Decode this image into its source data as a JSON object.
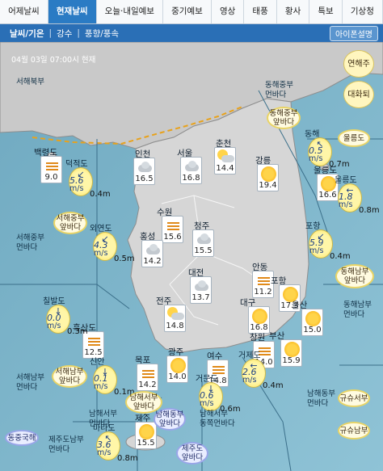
{
  "tabs": [
    "어제날씨",
    "현재날씨",
    "오늘·내일예보",
    "중기예보",
    "영상",
    "태풍",
    "황사",
    "특보",
    "기상청"
  ],
  "active_tab": "현재날씨",
  "subnav": {
    "items": [
      "날씨/기온",
      "강수",
      "풍향/풍속"
    ],
    "separator": "|",
    "selected": "날씨/기온",
    "phone_button": "아이폰설명"
  },
  "map": {
    "timestamp": "04월 03일 07:00시 현재",
    "controls": {
      "zoom_label": "연해주",
      "strait_label": "대화퇴"
    },
    "seas": [
      {
        "text": "서해북부"
      },
      {
        "text": "동해중부\n먼바다"
      },
      {
        "text": "서해중부\n먼바다"
      },
      {
        "text": "동해남부\n먼바다"
      },
      {
        "text": "서해남부\n먼바다"
      },
      {
        "text": "남해동부\n먼바다"
      },
      {
        "text": "남해서부\n먼바다"
      },
      {
        "text": "남해서부\n동쪽먼바다"
      },
      {
        "text": "제주도남부\n먼바다"
      }
    ],
    "zones": [
      {
        "text": "동해중부\n앞바다",
        "style": "yellow"
      },
      {
        "text": "서해중부\n앞바다",
        "style": "yellow"
      },
      {
        "text": "동해남부\n앞바다",
        "style": "yellow"
      },
      {
        "text": "서해남부\n앞바다",
        "style": "yellow"
      },
      {
        "text": "남해서부\n앞바다",
        "style": "yellow"
      },
      {
        "text": "남해동부\n앞바다",
        "style": "blue"
      },
      {
        "text": "제주도\n앞바다",
        "style": "blue"
      },
      {
        "text": "울릉도",
        "style": "yellow"
      },
      {
        "text": "동중국해",
        "style": "blue"
      },
      {
        "text": "규슈서부",
        "style": "yellow"
      },
      {
        "text": "규슈남부",
        "style": "yellow"
      }
    ],
    "cities": [
      {
        "name": "백령도",
        "icon": "bars",
        "temp": "9.0"
      },
      {
        "name": "인천",
        "icon": "cloud",
        "temp": "16.5"
      },
      {
        "name": "서울",
        "icon": "cloud",
        "temp": "16.8"
      },
      {
        "name": "춘천",
        "icon": "pcloud",
        "temp": "14.4"
      },
      {
        "name": "강릉",
        "icon": "sun",
        "temp": "19.4"
      },
      {
        "name": "수원",
        "icon": "bars",
        "temp": "15.6"
      },
      {
        "name": "청주",
        "icon": "cloud",
        "temp": "15.5"
      },
      {
        "name": "홍성",
        "icon": "cloud",
        "temp": "14.2"
      },
      {
        "name": "안동",
        "icon": "bars",
        "temp": "11.2"
      },
      {
        "name": "울릉도",
        "icon": "sun",
        "temp": "16.6"
      },
      {
        "name": "대전",
        "icon": "cloud",
        "temp": "13.7"
      },
      {
        "name": "포항",
        "icon": "sun",
        "temp": "17.3"
      },
      {
        "name": "전주",
        "icon": "pcloud",
        "temp": "14.8"
      },
      {
        "name": "대구",
        "icon": "sun",
        "temp": "16.8"
      },
      {
        "name": "울산",
        "icon": "sun",
        "temp": "15.0"
      },
      {
        "name": "흑산도",
        "icon": "bars",
        "temp": "12.5"
      },
      {
        "name": "창원",
        "icon": "bars",
        "temp": "14.0"
      },
      {
        "name": "부산",
        "icon": "sun",
        "temp": "15.9"
      },
      {
        "name": "광주",
        "icon": "sun",
        "temp": "14.0"
      },
      {
        "name": "여수",
        "icon": "bars",
        "temp": "14.8"
      },
      {
        "name": "목포",
        "icon": "bars",
        "temp": "14.2"
      },
      {
        "name": "제주",
        "icon": "sun",
        "temp": "15.5"
      }
    ],
    "buoys": [
      {
        "name": "덕적도",
        "dir": "↙",
        "speed": "5.6",
        "unit": "m/s",
        "height": "0.4m"
      },
      {
        "name": "동해",
        "dir": "↖",
        "speed": "0.5",
        "unit": "m/s",
        "height": "0.7m"
      },
      {
        "name": "울릉도",
        "dir": "←",
        "speed": "1.8",
        "unit": "m/s",
        "height": "0.8m"
      },
      {
        "name": "외연도",
        "dir": "↙",
        "speed": "4.3",
        "unit": "m/s",
        "height": "0.5m"
      },
      {
        "name": "포항",
        "dir": "↙",
        "speed": "5.9",
        "unit": "m/s",
        "height": "0.4m"
      },
      {
        "name": "칠발도",
        "dir": "↓",
        "speed": "0.0",
        "unit": "m/s",
        "height": "0.3m"
      },
      {
        "name": "신안",
        "dir": "↓",
        "speed": "0.1",
        "unit": "m/s",
        "height": "0.1m"
      },
      {
        "name": "거제도",
        "dir": "←",
        "speed": "2.6",
        "unit": "m/s",
        "height": "0.4m"
      },
      {
        "name": "거문도",
        "dir": "↓",
        "speed": "0.6",
        "unit": "m/s",
        "height": "0.6m"
      },
      {
        "name": "마라도",
        "dir": "↖",
        "speed": "3.6",
        "unit": "m/s",
        "height": "0.8m"
      }
    ]
  },
  "colors": {
    "accent": "#2a7bc4",
    "subbar": "#2a6fb6",
    "sea": "#7db6cc",
    "land": "#d2d2d2"
  }
}
